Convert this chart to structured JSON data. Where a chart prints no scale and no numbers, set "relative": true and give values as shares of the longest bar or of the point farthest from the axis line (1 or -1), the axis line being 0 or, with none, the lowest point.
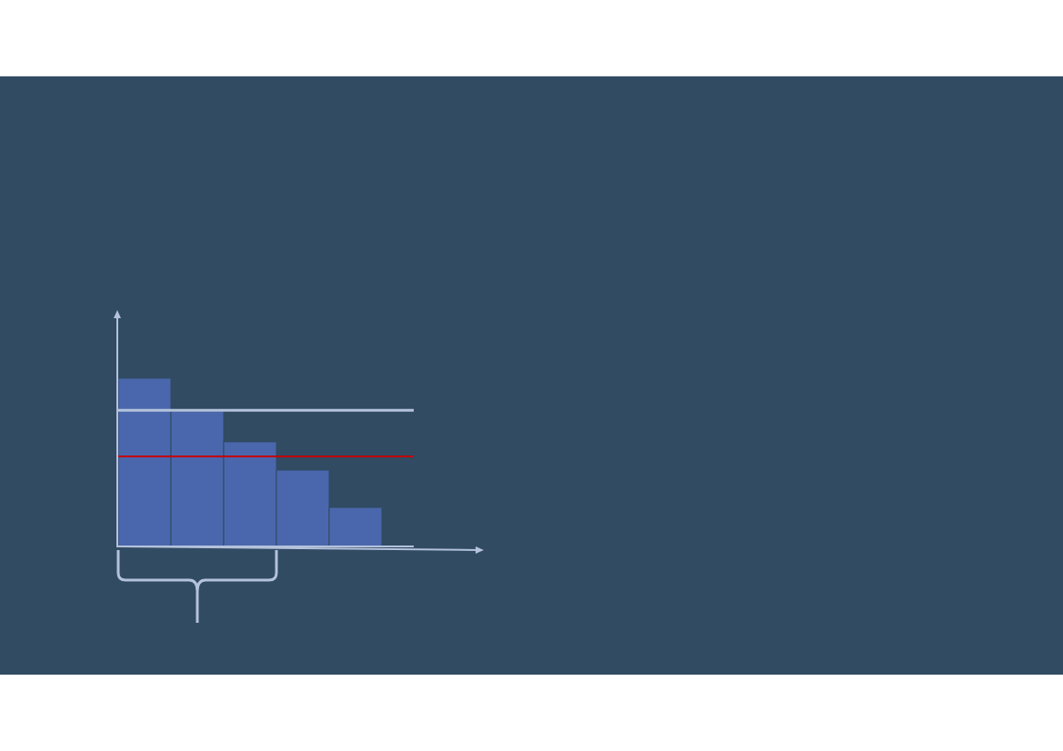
{
  "chart_data": {
    "type": "bar",
    "relative": true,
    "categories": [
      null,
      null,
      null,
      null,
      null
    ],
    "values": [
      1,
      0.805,
      0.622,
      0.454,
      0.232
    ],
    "color": "#4a67ad",
    "ref_lines": [
      {
        "axis": "y",
        "value": 0.81,
        "color": "#b4c2dc"
      },
      {
        "axis": "y",
        "value": 0.535,
        "color": "#c00000"
      }
    ]
  }
}
